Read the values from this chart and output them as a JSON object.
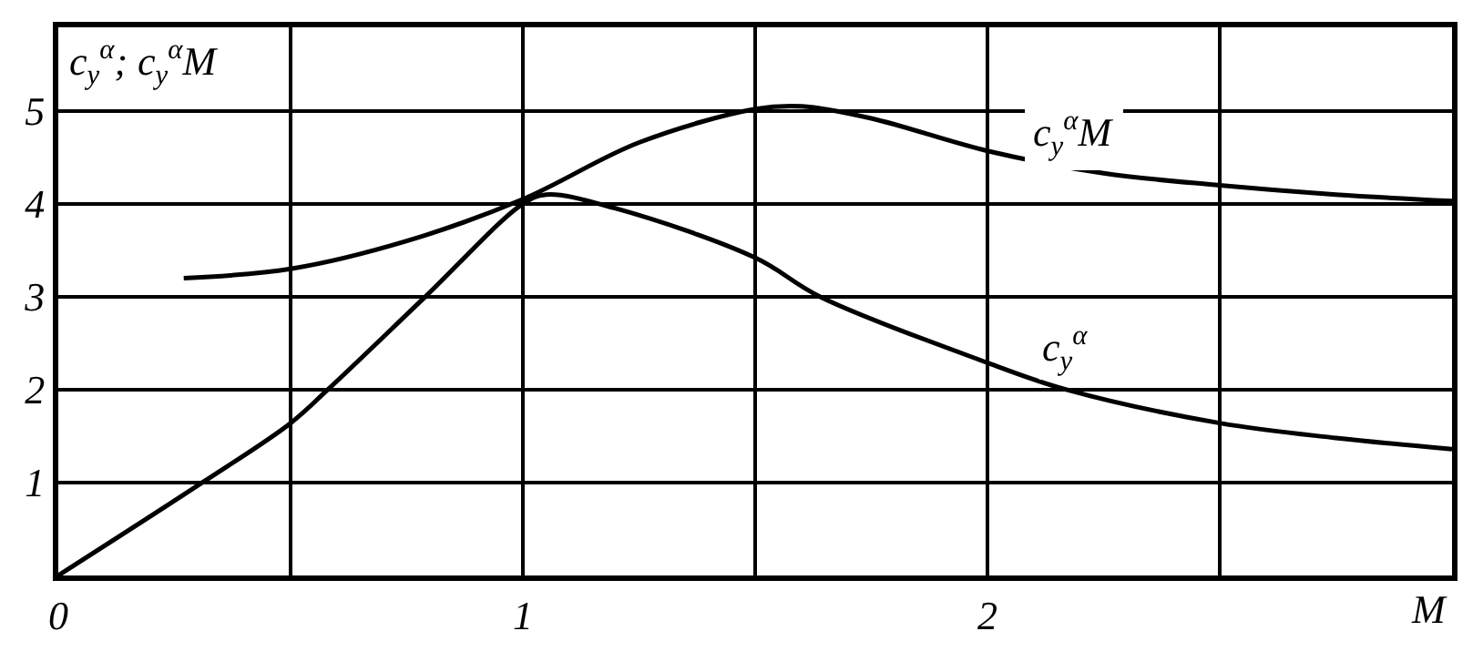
{
  "chart_data": {
    "type": "line",
    "ylabel": "c$_{y}$$^{α}$; c$_{y}$$^{α}$M",
    "xlabel": "M",
    "xlim": [
      0,
      3
    ],
    "ylim": [
      0,
      5.9
    ],
    "xticks": [
      0,
      {
        "value": 0.5,
        "label": null
      },
      1,
      {
        "value": 1.5,
        "label": null
      },
      2,
      {
        "value": 2.5,
        "label": null
      },
      {
        "value": 3,
        "label": null
      }
    ],
    "yticks": [
      1,
      2,
      3,
      4,
      5
    ],
    "grid": true,
    "marker": "none",
    "line_style": "solid",
    "series": [
      {
        "color": "#000000",
        "x": [
          0,
          0.31,
          0.5,
          0.58,
          0.79,
          1,
          1.05,
          1.2,
          1.5,
          1.64,
          2,
          2.17,
          2.5,
          2.75,
          3
        ],
        "values": [
          0,
          1,
          1.64,
          2,
          3,
          4,
          4.1,
          3.95,
          3.42,
          3.0,
          2.29,
          2.0,
          1.64,
          1.48,
          1.36
        ]
      },
      {
        "color": "#000000",
        "x": [
          0.27,
          0.5,
          0.75,
          1,
          1.25,
          1.5,
          1.6,
          1.75,
          2,
          2.25,
          2.5,
          2.75,
          3
        ],
        "values": [
          3.2,
          3.3,
          3.6,
          4.05,
          4.66,
          5.02,
          5.05,
          4.92,
          4.57,
          4.33,
          4.2,
          4.1,
          4.03
        ]
      }
    ],
    "annotations": [
      {
        "text": "c$_{y}$$^{α}$",
        "x": 2.17,
        "y": 2.45
      },
      "c$_{y}$$^{α}$M"
    ]
  }
}
